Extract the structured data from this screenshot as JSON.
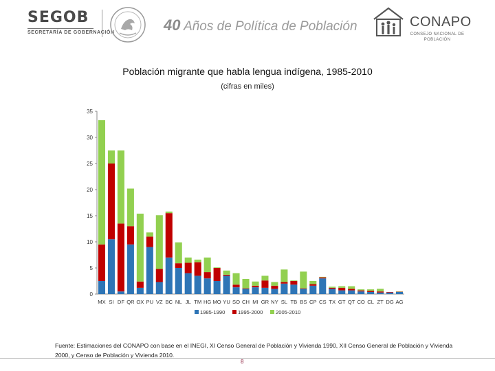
{
  "header": {
    "agency_name": "SEGOB",
    "agency_subtitle": "SECRETARÍA DE GOBERNACIÓN",
    "tagline_number": "40",
    "tagline_text": "Años de Política de Población",
    "council_name": "CONAPO",
    "council_subtitle_1": "CONSEJO NACIONAL DE",
    "council_subtitle_2": "POBLACIÓN"
  },
  "chart_data": {
    "type": "bar",
    "stacked": true,
    "title": "Población migrante que habla lengua indígena, 1985-2010",
    "subtitle": "(cifras en miles)",
    "xlabel": "",
    "ylabel": "",
    "ylim": [
      0,
      35
    ],
    "yticks": [
      0,
      5,
      10,
      15,
      20,
      25,
      30,
      35
    ],
    "grid": false,
    "legend_position": "bottom",
    "categories": [
      "MX",
      "SI",
      "DF",
      "QR",
      "OX",
      "PU",
      "VZ",
      "BC",
      "NL",
      "JL",
      "TM",
      "HG",
      "MO",
      "YU",
      "SO",
      "CH",
      "MI",
      "GR",
      "NY",
      "SL",
      "TB",
      "BS",
      "CP",
      "CS",
      "TX",
      "GT",
      "QT",
      "CO",
      "CL",
      "ZT",
      "DG",
      "AG"
    ],
    "series": [
      {
        "name": "1985-1990",
        "color": "#2e75b6",
        "values": [
          2.5,
          10.5,
          0.5,
          9.5,
          1.2,
          9.0,
          2.3,
          7.0,
          5.0,
          4.0,
          3.5,
          3.0,
          2.5,
          3.5,
          1.3,
          1.0,
          1.3,
          1.2,
          1.0,
          2.0,
          1.8,
          1.0,
          1.6,
          3.0,
          1.0,
          0.7,
          0.7,
          0.5,
          0.4,
          0.3,
          0.3,
          0.4
        ]
      },
      {
        "name": "1995-2000",
        "color": "#c00000",
        "values": [
          7.0,
          14.5,
          13.0,
          3.5,
          1.2,
          2.0,
          2.5,
          8.5,
          0.9,
          2.0,
          2.6,
          1.2,
          2.5,
          0.2,
          0.5,
          0.1,
          0.3,
          1.4,
          0.6,
          0.3,
          0.7,
          0.1,
          0.3,
          0.2,
          0.2,
          0.5,
          0.3,
          0.2,
          0.2,
          0.2,
          0.1,
          0.05
        ]
      },
      {
        "name": "2005-2010",
        "color": "#92d050",
        "values": [
          23.8,
          2.5,
          14.0,
          7.2,
          13.0,
          0.8,
          10.3,
          0.3,
          4.0,
          1.0,
          0.5,
          2.8,
          0.1,
          0.8,
          2.2,
          1.8,
          0.8,
          0.9,
          0.7,
          2.4,
          0.1,
          3.2,
          0.6,
          0.1,
          0.2,
          0.3,
          0.5,
          0.2,
          0.3,
          0.5,
          0.0,
          0.05
        ]
      }
    ]
  },
  "footer": {
    "source_note": "Fuente: Estimaciones del CONAPO con base en el INEGI, XI Censo General de Población y Vivienda 1990, XII Censo General de Población y Vivienda 2000, y Censo de Población y Vivienda 2010.",
    "page_number": "8"
  }
}
